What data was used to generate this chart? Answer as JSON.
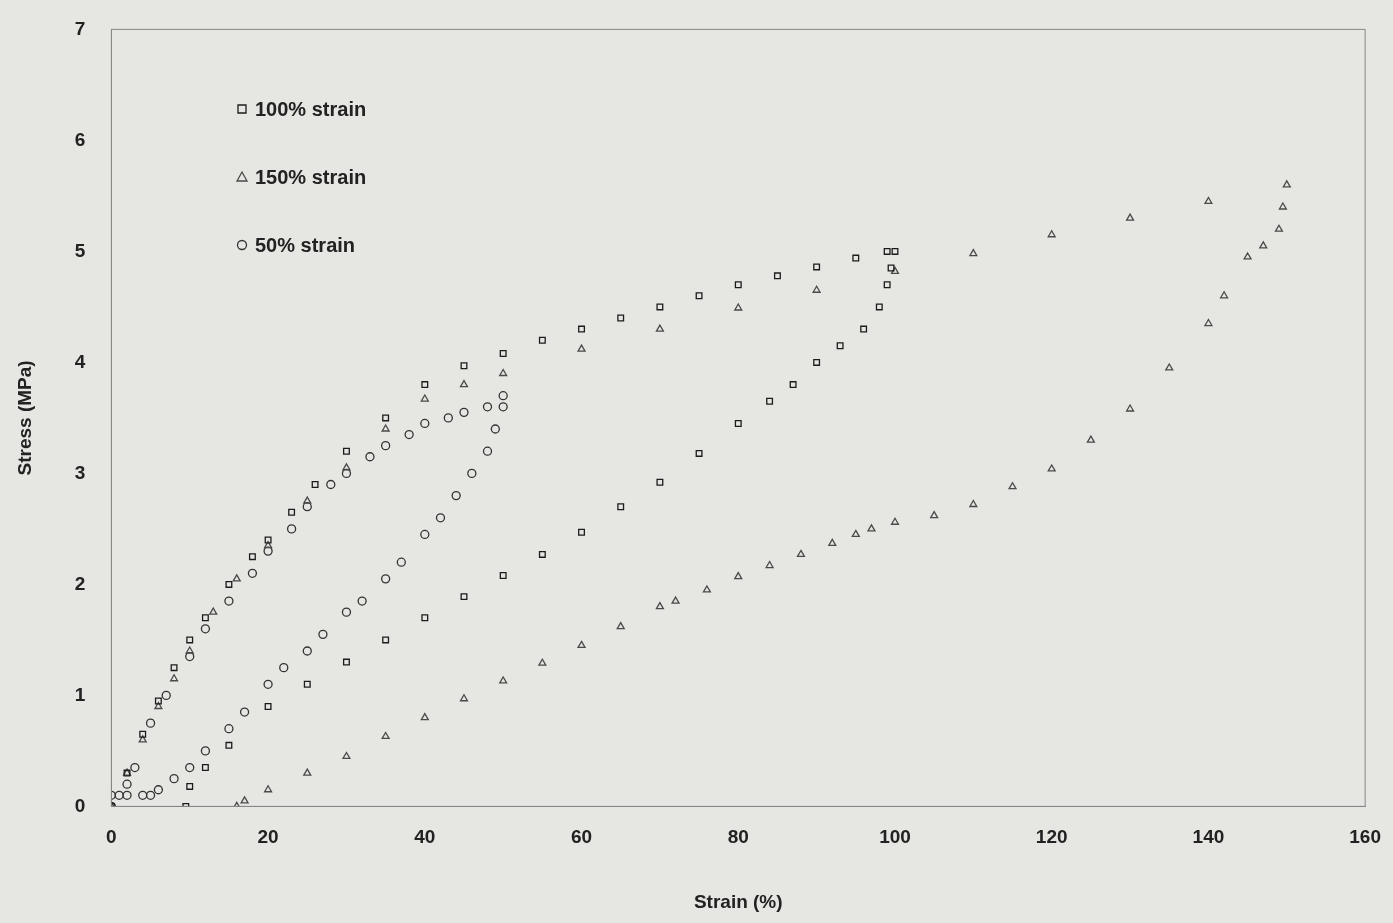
{
  "chart_data": {
    "type": "scatter",
    "xlabel": "Strain (%)",
    "ylabel": "Stress (MPa)",
    "xlim": [
      0,
      160
    ],
    "xticks": [
      0,
      20,
      40,
      60,
      80,
      100,
      120,
      140,
      160
    ],
    "ylim": [
      0,
      7
    ],
    "yticks": [
      0,
      1,
      2,
      3,
      4,
      5,
      6,
      7
    ],
    "grid": false,
    "legend": "top left",
    "series": [
      {
        "name": "100% strain",
        "color": "#1c1c1c",
        "marker": "square",
        "x": [
          0,
          2,
          4,
          6,
          8,
          10,
          12,
          15,
          18,
          20,
          23,
          26,
          30,
          35,
          40,
          45,
          50,
          55,
          60,
          65,
          70,
          75,
          80,
          85,
          90,
          95,
          99,
          100,
          99.5,
          99,
          98,
          96,
          93,
          90,
          87,
          84,
          80,
          75,
          70,
          65,
          60,
          55,
          50,
          45,
          40,
          35,
          30,
          25,
          20,
          15,
          12,
          10,
          9.5
        ],
        "values": [
          0,
          0.3,
          0.65,
          0.95,
          1.25,
          1.5,
          1.7,
          2.0,
          2.25,
          2.4,
          2.65,
          2.9,
          3.2,
          3.5,
          3.8,
          3.97,
          4.08,
          4.2,
          4.3,
          4.4,
          4.5,
          4.6,
          4.7,
          4.78,
          4.86,
          4.94,
          5.0,
          5.0,
          4.85,
          4.7,
          4.5,
          4.3,
          4.15,
          4.0,
          3.8,
          3.65,
          3.45,
          3.18,
          2.92,
          2.7,
          2.47,
          2.27,
          2.08,
          1.89,
          1.7,
          1.5,
          1.3,
          1.1,
          0.9,
          0.55,
          0.35,
          0.18,
          0
        ]
      },
      {
        "name": "150% strain",
        "color": "#4a4a4a",
        "marker": "triangle",
        "x": [
          0,
          2,
          4,
          6,
          8,
          10,
          13,
          16,
          20,
          25,
          30,
          35,
          40,
          45,
          50,
          60,
          70,
          80,
          90,
          100,
          110,
          120,
          130,
          140,
          150,
          149.5,
          149,
          147,
          145,
          142,
          140,
          135,
          130,
          125,
          120,
          115,
          110,
          105,
          100,
          97,
          95,
          92,
          88,
          84,
          80,
          76,
          72,
          70,
          65,
          60,
          55,
          50,
          45,
          40,
          35,
          30,
          25,
          20,
          17,
          16
        ],
        "values": [
          0,
          0.3,
          0.6,
          0.9,
          1.15,
          1.4,
          1.75,
          2.05,
          2.35,
          2.75,
          3.05,
          3.4,
          3.67,
          3.8,
          3.9,
          4.12,
          4.3,
          4.49,
          4.65,
          4.82,
          4.98,
          5.15,
          5.3,
          5.45,
          5.6,
          5.4,
          5.2,
          5.05,
          4.95,
          4.6,
          4.35,
          3.95,
          3.58,
          3.3,
          3.04,
          2.88,
          2.72,
          2.62,
          2.56,
          2.5,
          2.45,
          2.37,
          2.27,
          2.17,
          2.07,
          1.95,
          1.85,
          1.8,
          1.62,
          1.45,
          1.29,
          1.13,
          0.97,
          0.8,
          0.63,
          0.45,
          0.3,
          0.15,
          0.05,
          0
        ]
      },
      {
        "name": "50% strain",
        "color": "#333333",
        "marker": "circle",
        "x": [
          0,
          1,
          2,
          3,
          5,
          7,
          10,
          12,
          15,
          18,
          20,
          23,
          25,
          28,
          30,
          33,
          35,
          38,
          40,
          43,
          45,
          48,
          50,
          50,
          49,
          48,
          46,
          44,
          42,
          40,
          37,
          35,
          32,
          30,
          27,
          25,
          22,
          20,
          17,
          15,
          12,
          10,
          8,
          6,
          5,
          4,
          2,
          0
        ],
        "values": [
          0,
          0.1,
          0.2,
          0.35,
          0.75,
          1.0,
          1.35,
          1.6,
          1.85,
          2.1,
          2.3,
          2.5,
          2.7,
          2.9,
          3.0,
          3.15,
          3.25,
          3.35,
          3.45,
          3.5,
          3.55,
          3.6,
          3.7,
          3.6,
          3.4,
          3.2,
          3.0,
          2.8,
          2.6,
          2.45,
          2.2,
          2.05,
          1.85,
          1.75,
          1.55,
          1.4,
          1.25,
          1.1,
          0.85,
          0.7,
          0.5,
          0.35,
          0.25,
          0.15,
          0.1,
          0.1,
          0.1,
          0.1
        ]
      }
    ]
  }
}
